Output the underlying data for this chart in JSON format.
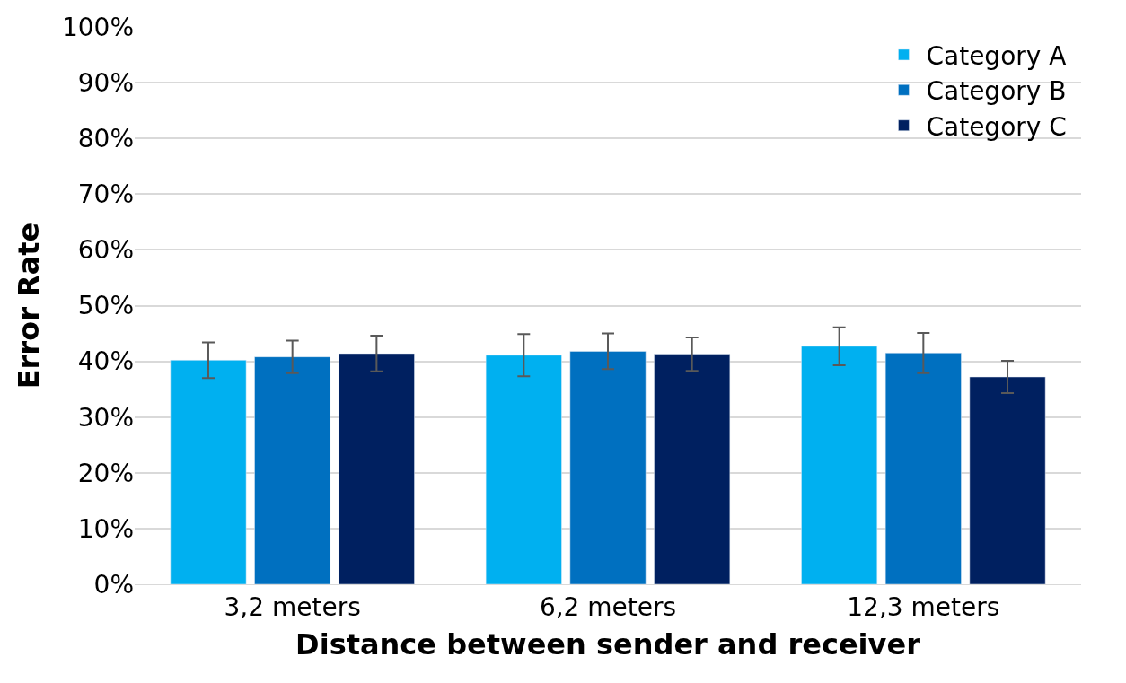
{
  "chart_data": {
    "type": "bar",
    "xlabel": "Distance between sender and receiver",
    "ylabel": "Error Rate",
    "categories": [
      "3,2 meters",
      "6,2 meters",
      "12,3 meters"
    ],
    "series": [
      {
        "name": "Category A",
        "color": "#00b0f0",
        "values": [
          40.2,
          41.1,
          42.7
        ],
        "errors": [
          3.2,
          3.8,
          3.4
        ]
      },
      {
        "name": "Category B",
        "color": "#0070c0",
        "values": [
          40.8,
          41.8,
          41.5
        ],
        "errors": [
          2.9,
          3.2,
          3.6
        ]
      },
      {
        "name": "Category C",
        "color": "#002060",
        "values": [
          41.4,
          41.3,
          37.2
        ],
        "errors": [
          3.2,
          3.0,
          2.9
        ]
      }
    ],
    "ylim": [
      0,
      100
    ],
    "yticks": [
      {
        "value": 0,
        "label": "0%"
      },
      {
        "value": 10,
        "label": "10%"
      },
      {
        "value": 20,
        "label": "20%"
      },
      {
        "value": 30,
        "label": "30%"
      },
      {
        "value": 40,
        "label": "40%"
      },
      {
        "value": 50,
        "label": "50%"
      },
      {
        "value": 60,
        "label": "60%"
      },
      {
        "value": 70,
        "label": "70%"
      },
      {
        "value": 80,
        "label": "80%"
      },
      {
        "value": 90,
        "label": "90%"
      },
      {
        "value": 100,
        "label": "100%"
      }
    ],
    "grid": "y",
    "legend": "top right"
  }
}
